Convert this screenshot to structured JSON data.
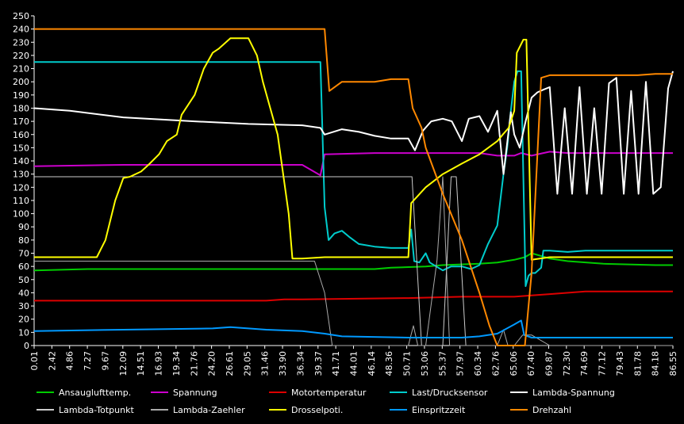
{
  "chart_data": {
    "type": "line",
    "title": "",
    "xlabel": "",
    "ylabel": "",
    "ylim": [
      0,
      250
    ],
    "yticks": [
      0,
      10,
      20,
      30,
      40,
      50,
      60,
      70,
      80,
      90,
      100,
      110,
      120,
      130,
      140,
      150,
      160,
      170,
      180,
      190,
      200,
      210,
      220,
      230,
      240,
      250
    ],
    "xlim": [
      0.01,
      86.55
    ],
    "xticks": [
      "0.01",
      "2.42",
      "4.86",
      "7.27",
      "9.67",
      "12.09",
      "14.51",
      "16.93",
      "19.34",
      "21.76",
      "24.20",
      "26.61",
      "29.05",
      "31.46",
      "33.90",
      "36.34",
      "39.37",
      "41.71",
      "44.01",
      "46.14",
      "48.36",
      "50.71",
      "53.06",
      "55.37",
      "57.97",
      "60.34",
      "62.76",
      "65.06",
      "67.40",
      "69.87",
      "72.30",
      "74.69",
      "77.12",
      "79.43",
      "81.78",
      "84.18",
      "86.55"
    ],
    "grid": false,
    "legend_position": "bottom",
    "series": [
      {
        "name": "Ansauglufttemp.",
        "color": "#00cc00",
        "x": [
          0.01,
          7.27,
          36.34,
          46.14,
          48.36,
          53.06,
          55.37,
          60.34,
          62.76,
          65.06,
          66.5,
          67.4,
          69.87,
          72.3,
          77.12,
          84.18,
          86.55
        ],
        "y": [
          57,
          58,
          58,
          58,
          59,
          60,
          61,
          62,
          63,
          65,
          67,
          70,
          66,
          64,
          62,
          61,
          61
        ]
      },
      {
        "name": "Spannung",
        "color": "#cc00cc",
        "x": [
          0.01,
          12.09,
          36.34,
          38.8,
          39.37,
          46.14,
          60.34,
          62.76,
          65.06,
          66.0,
          67.4,
          69.87,
          72.3,
          86.55
        ],
        "y": [
          136,
          137,
          137,
          131,
          145,
          146,
          146,
          144,
          144,
          146,
          144,
          146,
          146,
          146
        ],
        "y_fix": [
          136,
          137,
          137,
          129,
          145,
          146,
          146,
          144,
          144,
          146,
          144,
          147,
          146,
          146
        ]
      },
      {
        "name": "Motortemperatur",
        "color": "#dd0000",
        "x": [
          0.01,
          31.46,
          33.9,
          36.34,
          50.71,
          57.97,
          62.76,
          65.06,
          67.4,
          69.87,
          74.69,
          86.55
        ],
        "y": [
          34,
          34,
          35,
          35,
          36,
          37,
          37,
          37,
          38,
          39,
          41,
          41
        ]
      },
      {
        "name": "Last/Drucksensor",
        "color": "#00cccc",
        "x": [
          0.01,
          36.34,
          38.8,
          39.37,
          39.9,
          40.7,
          41.71,
          42.8,
          44.01,
          46.14,
          48.36,
          50.71,
          51.1,
          51.5,
          52.2,
          53.06,
          53.6,
          55.37,
          56.5,
          57.97,
          59.2,
          60.34,
          61.5,
          62.76,
          63.6,
          64.1,
          64.6,
          65.06,
          65.5,
          66.0,
          66.6,
          67.0,
          67.4,
          67.9,
          68.7,
          69.0,
          69.87,
          72.3,
          74.69,
          77.12,
          79.43,
          81.78,
          84.18,
          86.55
        ],
        "y": [
          215,
          215,
          215,
          105,
          80,
          85,
          87,
          82,
          77,
          75,
          74,
          74,
          88,
          64,
          63,
          70,
          63,
          57,
          60,
          60,
          58,
          61,
          77,
          91,
          130,
          150,
          178,
          200,
          208,
          208,
          45,
          53,
          55,
          55,
          59,
          72,
          72,
          71,
          72,
          72,
          72,
          72,
          72,
          72
        ]
      },
      {
        "name": "Lambda-Spannung",
        "color": "#ffffff",
        "x": [
          0.01,
          4.86,
          12.09,
          21.76,
          29.05,
          36.34,
          38.8,
          39.37,
          41.71,
          44.01,
          46.14,
          48.36,
          50.71,
          51.6,
          52.7,
          53.8,
          55.37,
          56.6,
          57.97,
          58.9,
          60.34,
          61.5,
          62.76,
          63.6,
          64.6,
          65.06,
          65.8,
          66.6,
          67.4,
          68.2,
          69.0,
          69.87,
          70.9,
          71.9,
          72.9,
          73.9,
          74.9,
          75.9,
          76.9,
          77.9,
          78.9,
          79.9,
          80.9,
          81.9,
          82.9,
          83.9,
          84.9,
          85.9,
          86.55
        ],
        "y": [
          180,
          178,
          173,
          170,
          168,
          167,
          165,
          160,
          164,
          162,
          159,
          157,
          157,
          148,
          163,
          170,
          172,
          170,
          155,
          172,
          174,
          162,
          178,
          130,
          177,
          160,
          150,
          170,
          188,
          192,
          194,
          196,
          115,
          180,
          115,
          196,
          115,
          180,
          115,
          199,
          203,
          115,
          193,
          115,
          200,
          115,
          120,
          195,
          208
        ]
      },
      {
        "name": "Lambda-Totpunkt",
        "color": "#cccccc",
        "x": [
          0.01,
          50.71,
          51.2,
          52.5,
          53.06,
          55.37,
          56.5,
          57.2,
          58.5,
          60.34,
          61.4,
          62.76,
          64.0,
          65.06,
          66.4,
          67.4,
          86.55
        ],
        "y": [
          128,
          128,
          128,
          0,
          0,
          0,
          128,
          128,
          0,
          0,
          0,
          0,
          0,
          0,
          0,
          0,
          0
        ]
      },
      {
        "name": "Lambda-Zaehler",
        "color": "#aaaaaa",
        "x": [
          0.01,
          36.34,
          38.0,
          39.37,
          40.4,
          41.71,
          50.71,
          51.4,
          52.0,
          53.06,
          54.6,
          55.37,
          56.3,
          57.97,
          60.34,
          62.76,
          63.6,
          64.2,
          65.06,
          66.2,
          67.4,
          69.87,
          72.3,
          86.55
        ],
        "y": [
          64,
          64,
          64,
          40,
          0,
          0,
          0,
          15,
          0,
          0,
          65,
          128,
          0,
          0,
          0,
          0,
          12,
          0,
          0,
          8,
          8,
          0,
          0,
          0
        ]
      },
      {
        "name": "Drosselpoti.",
        "color": "#ffff00",
        "x": [
          0.01,
          8.5,
          9.67,
          11.0,
          12.09,
          13.0,
          14.51,
          15.5,
          16.93,
          18.0,
          19.34,
          20.0,
          21.76,
          23.0,
          24.2,
          25.0,
          26.61,
          27.5,
          29.05,
          30.2,
          31.0,
          33.0,
          34.5,
          35.0,
          36.34,
          39.37,
          46.14,
          50.71,
          51.1,
          53.06,
          55.37,
          57.97,
          60.34,
          62.76,
          63.5,
          64.3,
          65.06,
          65.4,
          66.3,
          66.7,
          67.4,
          69.87,
          86.55
        ],
        "y": [
          67,
          67,
          80,
          110,
          127,
          128,
          132,
          137,
          145,
          155,
          160,
          175,
          190,
          210,
          222,
          225,
          233,
          233,
          233,
          220,
          200,
          160,
          100,
          66,
          66,
          67,
          67,
          67,
          108,
          120,
          130,
          138,
          145,
          155,
          160,
          165,
          178,
          222,
          232,
          232,
          65,
          67,
          67
        ]
      },
      {
        "name": "Einspritzzeit",
        "color": "#0099ff",
        "x": [
          0.01,
          12.09,
          24.2,
          26.61,
          29.05,
          31.46,
          36.34,
          39.37,
          41.71,
          50.71,
          53.06,
          57.97,
          60.34,
          62.76,
          65.06,
          66.0,
          66.4,
          67.4,
          69.87,
          86.55
        ],
        "y": [
          11,
          12,
          13,
          14,
          13,
          12,
          11,
          9,
          7,
          6,
          6,
          6,
          7,
          9,
          16,
          19,
          8,
          6,
          6,
          6
        ]
      },
      {
        "name": "Drehzahl",
        "color": "#ff8800",
        "x": [
          0.01,
          36.34,
          39.37,
          40.0,
          41.71,
          44.01,
          46.14,
          48.36,
          50.71,
          51.3,
          52.5,
          53.06,
          55.37,
          57.97,
          60.34,
          61.7,
          62.76,
          65.06,
          66.5,
          67.4,
          68.7,
          69.87,
          72.3,
          74.69,
          77.12,
          79.43,
          81.78,
          84.18,
          86.55
        ],
        "y": [
          240,
          240,
          240,
          193,
          200,
          200,
          200,
          202,
          202,
          180,
          165,
          150,
          115,
          80,
          40,
          15,
          0,
          0,
          0,
          55,
          203,
          205,
          205,
          205,
          205,
          205,
          205,
          206,
          206
        ]
      }
    ]
  }
}
